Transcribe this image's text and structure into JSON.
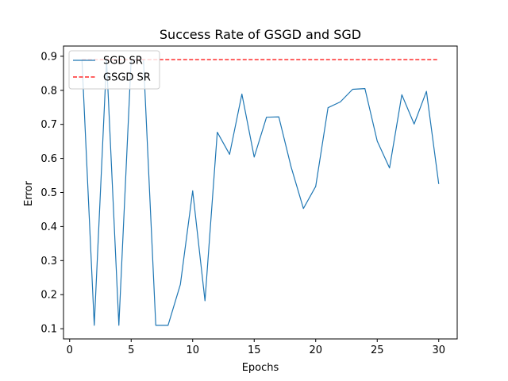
{
  "chart_data": {
    "type": "line",
    "title": "Success Rate of GSGD and SGD",
    "xlabel": "Epochs",
    "ylabel": "Error",
    "xlim": [
      -0.5,
      31.5
    ],
    "ylim": [
      0.07,
      0.93
    ],
    "xticks": [
      0,
      5,
      10,
      15,
      20,
      25,
      30
    ],
    "yticks": [
      0.1,
      0.2,
      0.3,
      0.4,
      0.5,
      0.6,
      0.7,
      0.8,
      0.9
    ],
    "grid": false,
    "legend_position": "top-left",
    "series": [
      {
        "name": "SGD SR",
        "color": "#1f77b4",
        "style": "solid",
        "x": [
          1,
          2,
          3,
          4,
          5,
          6,
          7,
          8,
          9,
          10,
          11,
          12,
          13,
          14,
          15,
          16,
          17,
          18,
          19,
          20,
          21,
          22,
          23,
          24,
          25,
          26,
          27,
          28,
          29,
          30
        ],
        "y": [
          0.89,
          0.11,
          0.89,
          0.11,
          0.89,
          0.89,
          0.11,
          0.11,
          0.23,
          0.505,
          0.182,
          0.677,
          0.612,
          0.789,
          0.604,
          0.721,
          0.722,
          0.575,
          0.453,
          0.518,
          0.749,
          0.766,
          0.803,
          0.805,
          0.651,
          0.572,
          0.787,
          0.701,
          0.797,
          0.525
        ]
      },
      {
        "name": "GSGD SR",
        "color": "#ff0000",
        "style": "dashed",
        "x": [
          1,
          30
        ],
        "y": [
          0.89,
          0.89
        ]
      }
    ]
  }
}
